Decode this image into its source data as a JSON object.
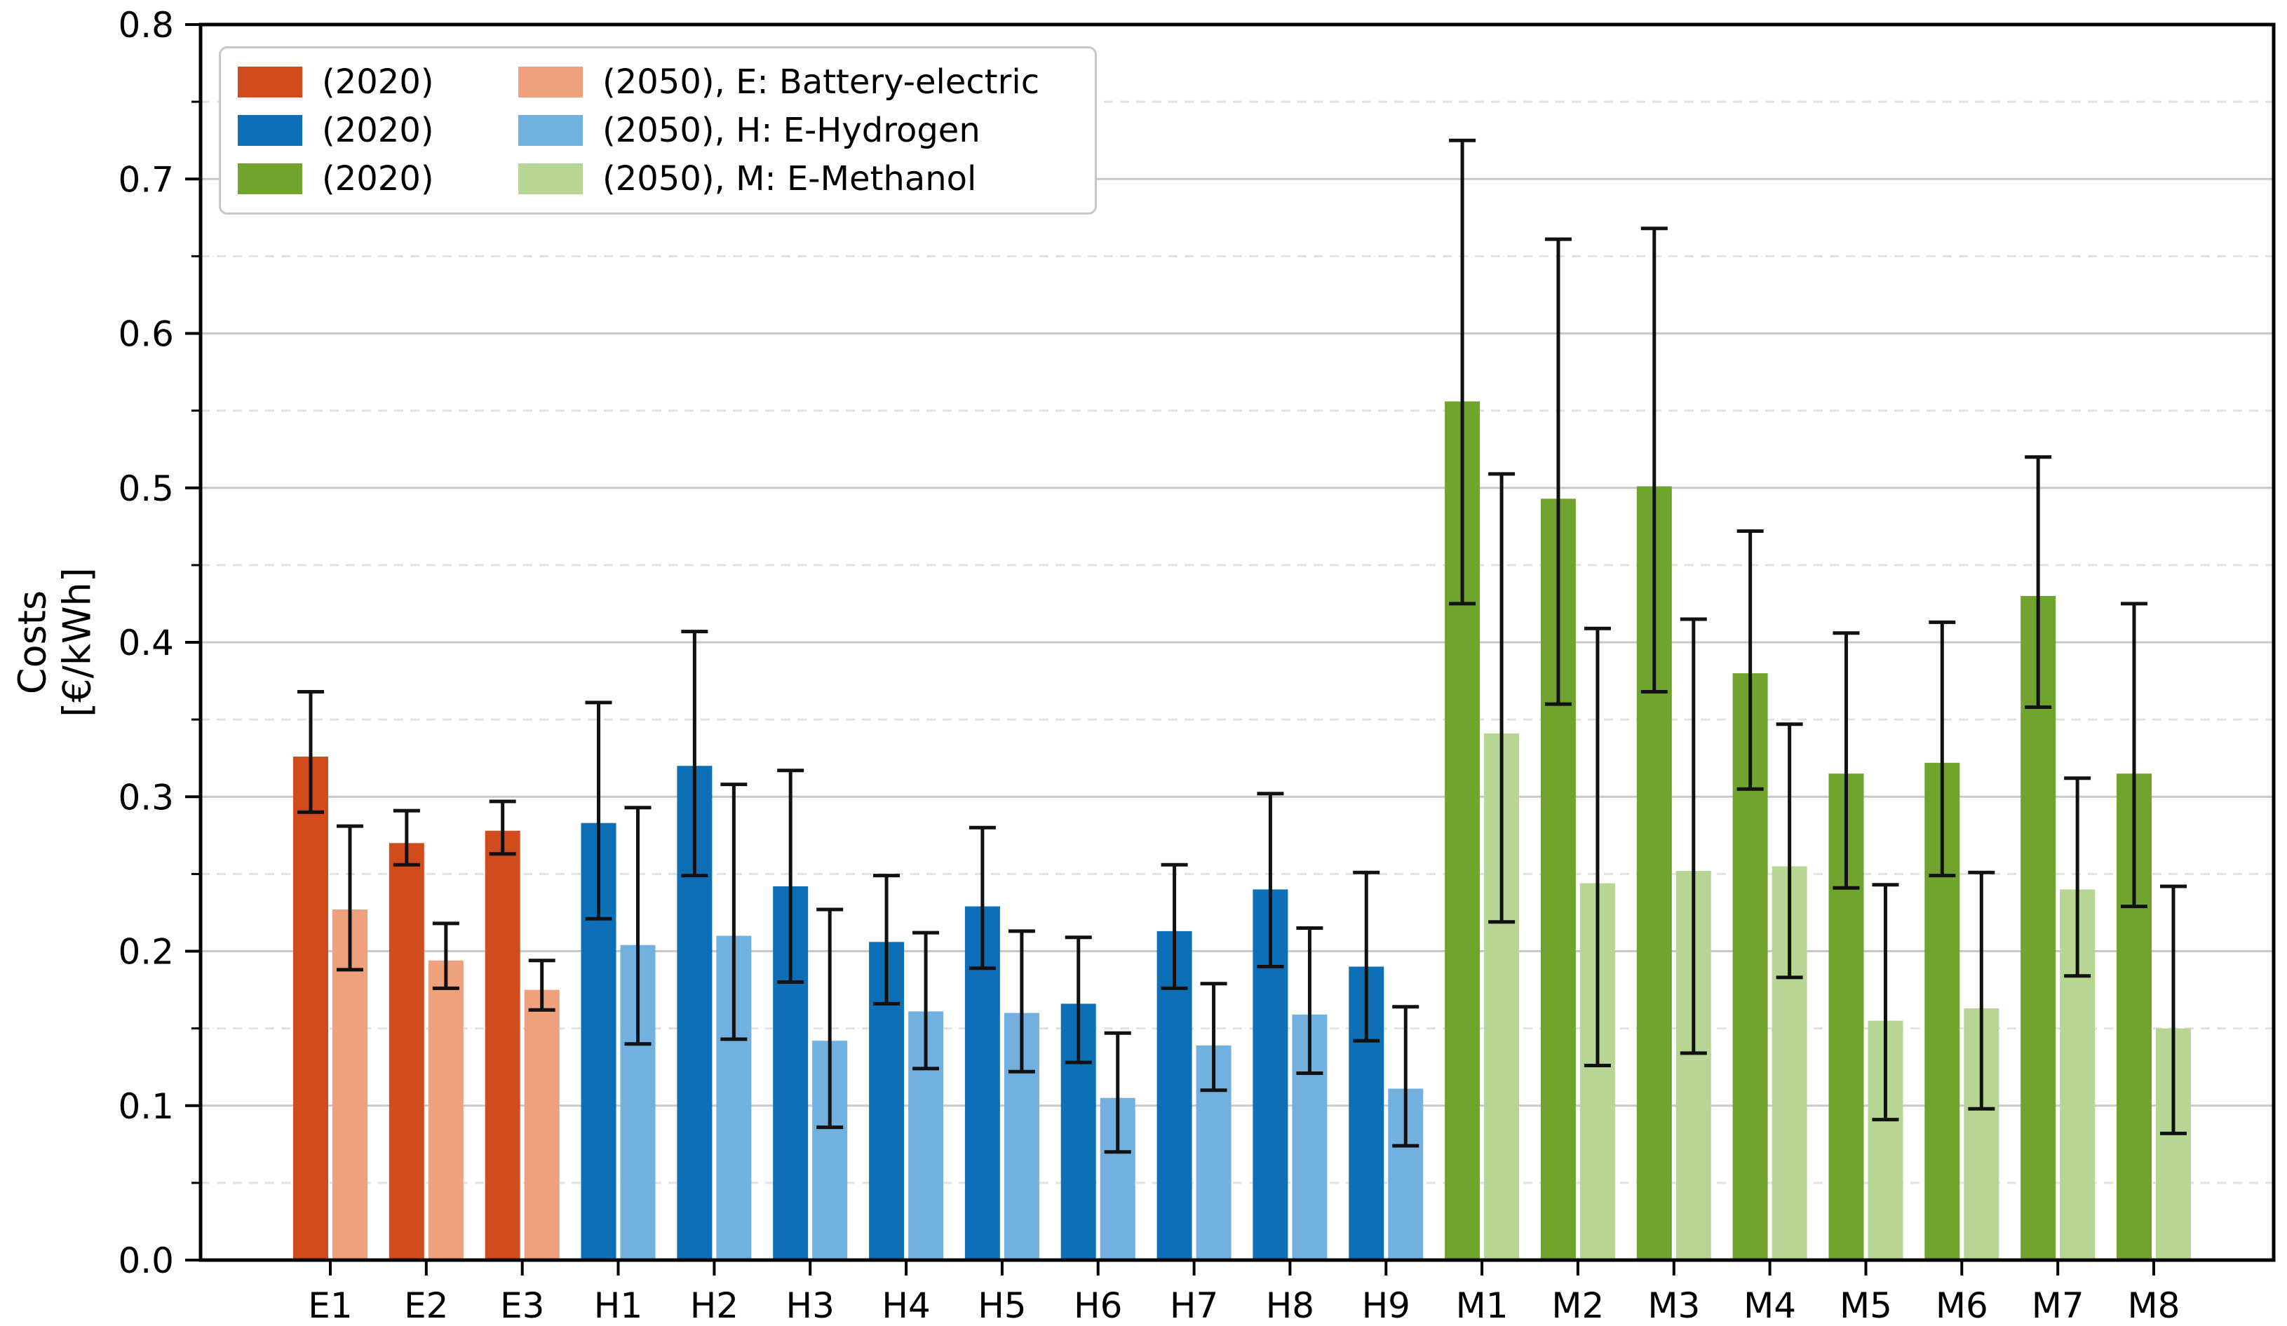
{
  "figure": {
    "background": "#ffffff",
    "ylabel_line1": "Costs",
    "ylabel_line2": "[€/kWh]"
  },
  "legend": {
    "rows": [
      {
        "group": "E",
        "label_2020": "(2020)",
        "label_2050": "(2050), E: Battery-electric"
      },
      {
        "group": "H",
        "label_2020": "(2020)",
        "label_2050": "(2050), H: E-Hydrogen"
      },
      {
        "group": "M",
        "label_2020": "(2020)",
        "label_2050": "(2050), M: E-Methanol"
      }
    ]
  },
  "chart_data": {
    "type": "bar",
    "title": "",
    "xlabel": "",
    "ylabel": "Costs [€/kWh]",
    "ylim": [
      0,
      0.8
    ],
    "ytick_step": 0.1,
    "ytick_minor_step": 0.05,
    "yticklabels": [
      "0.0",
      "0.1",
      "0.2",
      "0.3",
      "0.4",
      "0.5",
      "0.6",
      "0.7",
      "0.8"
    ],
    "grid": "solid light-gray lines at 0.1 multiples, dashed lighter lines at 0.05 offsets",
    "legend_position": "upper-left",
    "categories": [
      "E1",
      "E2",
      "E3",
      "H1",
      "H2",
      "H3",
      "H4",
      "H5",
      "H6",
      "H7",
      "H8",
      "H9",
      "M1",
      "M2",
      "M3",
      "M4",
      "M5",
      "M6",
      "M7",
      "M8"
    ],
    "series": [
      {
        "name": "(2020)",
        "values": [
          0.326,
          0.27,
          0.278,
          0.283,
          0.32,
          0.242,
          0.206,
          0.229,
          0.166,
          0.213,
          0.24,
          0.19,
          0.556,
          0.493,
          0.501,
          0.38,
          0.315,
          0.322,
          0.43,
          0.315
        ],
        "err_low": [
          0.29,
          0.256,
          0.263,
          0.221,
          0.249,
          0.18,
          0.166,
          0.189,
          0.128,
          0.176,
          0.19,
          0.142,
          0.425,
          0.36,
          0.368,
          0.305,
          0.241,
          0.249,
          0.358,
          0.229
        ],
        "err_high": [
          0.368,
          0.291,
          0.297,
          0.361,
          0.407,
          0.317,
          0.249,
          0.28,
          0.209,
          0.256,
          0.302,
          0.251,
          0.725,
          0.661,
          0.668,
          0.472,
          0.406,
          0.413,
          0.52,
          0.425
        ]
      },
      {
        "name": "(2050)",
        "values": [
          0.227,
          0.194,
          0.175,
          0.204,
          0.21,
          0.142,
          0.161,
          0.16,
          0.105,
          0.139,
          0.159,
          0.111,
          0.341,
          0.244,
          0.252,
          0.255,
          0.155,
          0.163,
          0.24,
          0.15
        ],
        "err_low": [
          0.188,
          0.176,
          0.162,
          0.14,
          0.143,
          0.086,
          0.124,
          0.122,
          0.07,
          0.11,
          0.121,
          0.074,
          0.219,
          0.126,
          0.134,
          0.183,
          0.091,
          0.098,
          0.184,
          0.082
        ],
        "err_high": [
          0.281,
          0.218,
          0.194,
          0.293,
          0.308,
          0.227,
          0.212,
          0.213,
          0.147,
          0.179,
          0.215,
          0.164,
          0.509,
          0.409,
          0.415,
          0.347,
          0.243,
          0.251,
          0.312,
          0.242
        ]
      }
    ],
    "colors": {
      "E_2020": "#d24b1d",
      "E_2050": "#efa17e",
      "H_2020": "#0d70b6",
      "H_2050": "#72b1df",
      "M_2020": "#70a42e",
      "M_2050": "#b7d694",
      "error_bar": "#111111",
      "grid_major": "#c8c8c8",
      "grid_minor": "#e2e2e2",
      "spine": "#000000",
      "text": "#000000"
    }
  }
}
